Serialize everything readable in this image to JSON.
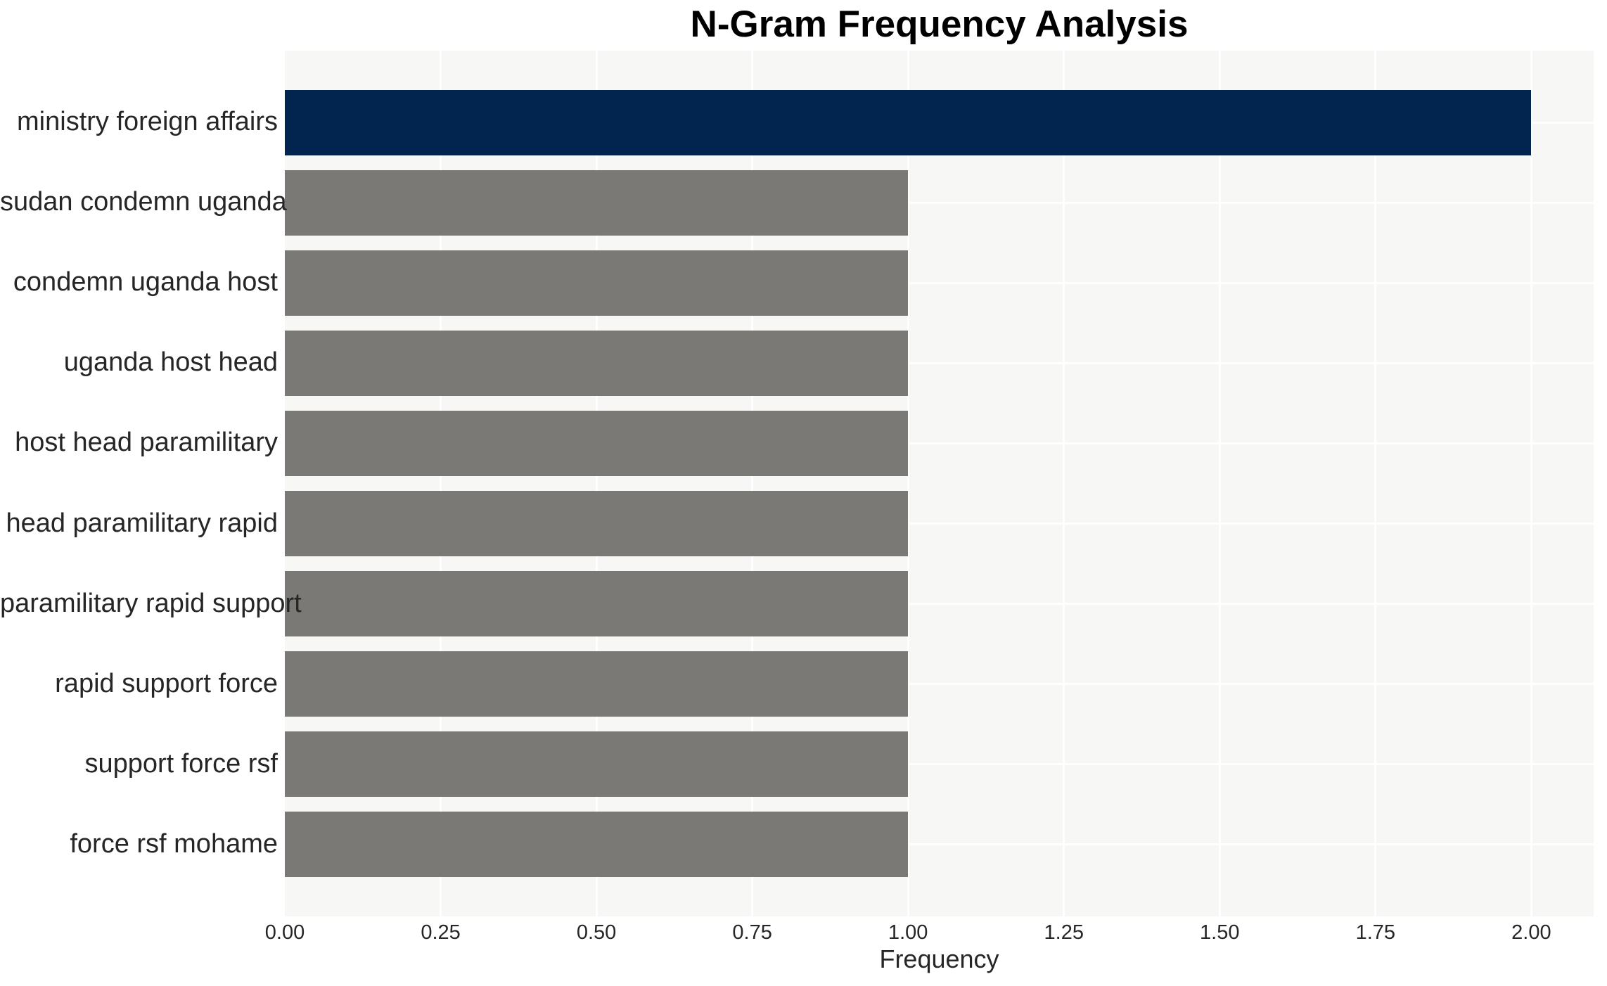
{
  "chart_data": {
    "type": "bar",
    "orientation": "horizontal",
    "title": "N-Gram Frequency Analysis",
    "xlabel": "Frequency",
    "ylabel": "",
    "categories": [
      "ministry foreign affairs",
      "sudan condemn uganda",
      "condemn uganda host",
      "uganda host head",
      "host head paramilitary",
      "head paramilitary rapid",
      "paramilitary rapid support",
      "rapid support force",
      "support force rsf",
      "force rsf mohame"
    ],
    "values": [
      2,
      1,
      1,
      1,
      1,
      1,
      1,
      1,
      1,
      1
    ],
    "bar_colors": [
      "#02254f",
      "#7a7975",
      "#7a7975",
      "#7a7975",
      "#7a7975",
      "#7a7975",
      "#7a7975",
      "#7a7975",
      "#7a7975",
      "#7a7975"
    ],
    "xlim": [
      0,
      2.1
    ],
    "xtick_values": [
      0,
      0.25,
      0.5,
      0.75,
      1.0,
      1.25,
      1.5,
      1.75,
      2.0
    ],
    "xtick_labels": [
      "0.00",
      "0.25",
      "0.50",
      "0.75",
      "1.00",
      "1.25",
      "1.50",
      "1.75",
      "2.00"
    ],
    "grid": "on",
    "legend": "none",
    "colors": {
      "highlight": "#02254f",
      "default": "#7a7975",
      "plot_background": "#f7f7f6",
      "gridline": "#ffffff",
      "tick_text": "#262626",
      "title_text": "#000000"
    }
  }
}
